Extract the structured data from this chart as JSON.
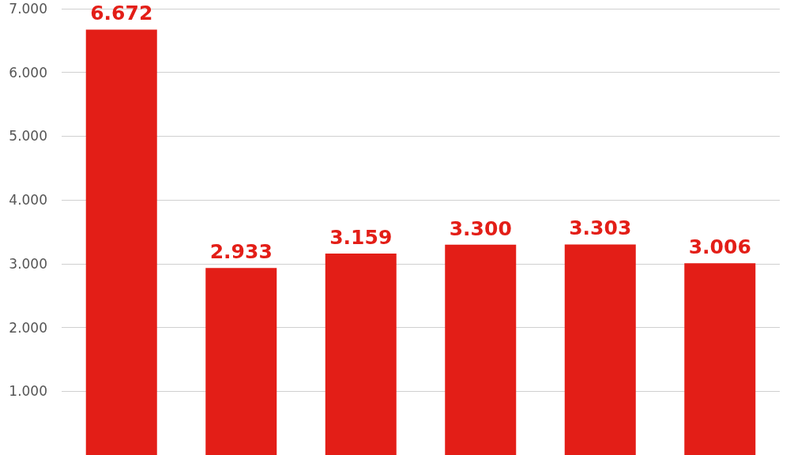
{
  "chart_data": {
    "type": "bar",
    "categories": [
      null,
      null,
      null,
      null,
      null,
      null
    ],
    "values": [
      6672,
      2933,
      3159,
      3300,
      3303,
      3006
    ],
    "value_labels": [
      "6.672",
      "2.933",
      "3.159",
      "3.300",
      "3.303",
      "3.006"
    ],
    "color": "#e31e17",
    "ylim": [
      0,
      7000
    ],
    "yticks": [
      {
        "value": 1000,
        "label": "1.000"
      },
      {
        "value": 2000,
        "label": "2.000"
      },
      {
        "value": 3000,
        "label": "3.000"
      },
      {
        "value": 4000,
        "label": "4.000"
      },
      {
        "value": 5000,
        "label": "5.000"
      },
      {
        "value": 6000,
        "label": "6.000"
      },
      {
        "value": 7000,
        "label": "7.000"
      }
    ],
    "grid": "y",
    "tick_labels": "y"
  }
}
